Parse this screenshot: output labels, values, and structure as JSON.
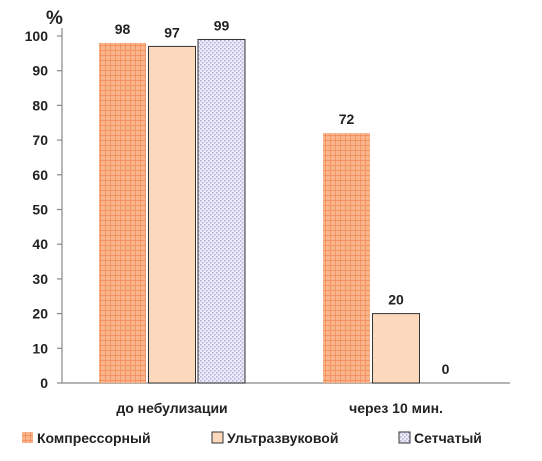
{
  "chart_data": {
    "type": "bar",
    "categories": [
      "до небулизации",
      "через 10 мин."
    ],
    "series": [
      {
        "name": "Компрессорный",
        "values": [
          98,
          72
        ],
        "color": "#f7a77a",
        "pattern": "grid"
      },
      {
        "name": "Ультразвуковой",
        "values": [
          97,
          20
        ],
        "color": "#fcd9bd",
        "pattern": "solid"
      },
      {
        "name": "Сетчатый",
        "values": [
          99,
          0
        ],
        "color": "#e3e0f4",
        "pattern": "dots"
      }
    ],
    "ylim": [
      0,
      100
    ],
    "yticks": [
      "0",
      "10",
      "20",
      "30",
      "40",
      "50",
      "60",
      "70",
      "80",
      "90",
      "100"
    ],
    "y_unit": "%",
    "grid": false,
    "legend_position": "bottom"
  }
}
